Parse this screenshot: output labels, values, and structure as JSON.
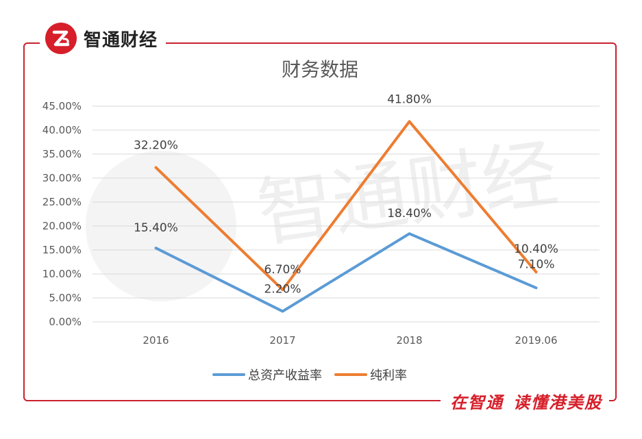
{
  "brand": {
    "name": "智通财经",
    "slogan_part1": "在智通",
    "slogan_part2": "读懂港美股",
    "accent_color": "#d61f2a"
  },
  "watermark_text": "智通财经",
  "chart_data": {
    "type": "line",
    "title": "财务数据",
    "xlabel": "",
    "ylabel": "",
    "categories": [
      "2016",
      "2017",
      "2018",
      "2019.06"
    ],
    "ylim": [
      0,
      45
    ],
    "y_ticks": [
      "0.00%",
      "5.00%",
      "10.00%",
      "15.00%",
      "20.00%",
      "25.00%",
      "30.00%",
      "35.00%",
      "40.00%",
      "45.00%"
    ],
    "grid": true,
    "legend_position": "bottom",
    "series": [
      {
        "name": "总资产收益率",
        "color": "#5b9bd5",
        "values": [
          15.4,
          2.2,
          18.4,
          7.1
        ],
        "labels": [
          "15.40%",
          "2.20%",
          "18.40%",
          "7.10%"
        ]
      },
      {
        "name": "纯利率",
        "color": "#ed7d31",
        "values": [
          32.2,
          6.7,
          41.8,
          10.4
        ],
        "labels": [
          "32.20%",
          "6.70%",
          "41.80%",
          "10.40%"
        ]
      }
    ]
  }
}
